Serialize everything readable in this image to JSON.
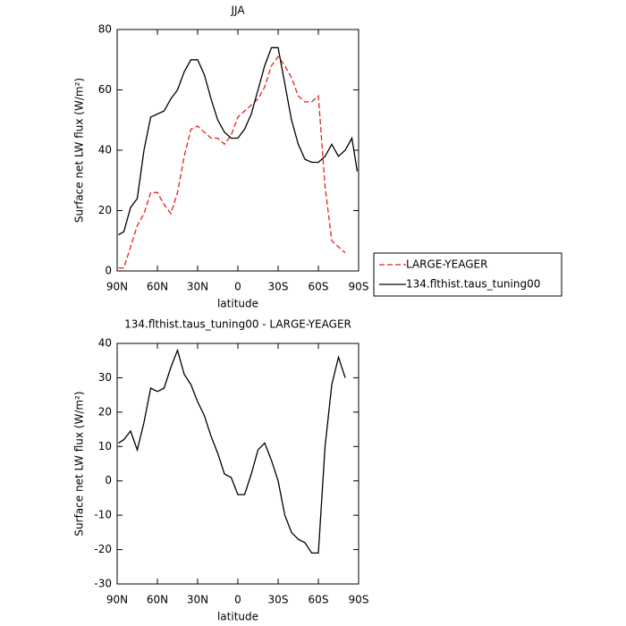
{
  "chart_data": [
    {
      "type": "line",
      "title": "JJA",
      "x_label": "latitude",
      "y_label": "Surface net LW flux (W/m²)",
      "x": [
        89,
        85,
        80,
        75,
        70,
        65,
        60,
        55,
        50,
        45,
        40,
        35,
        30,
        25,
        20,
        15,
        10,
        5,
        0,
        -5,
        -10,
        -15,
        -20,
        -25,
        -30,
        -35,
        -40,
        -45,
        -50,
        -55,
        -60,
        -65,
        -70,
        -75,
        -80,
        -85,
        -89
      ],
      "series": [
        {
          "name": "LARGE-YEAGER",
          "color": "#e8201e",
          "dash": true,
          "values": [
            1,
            1,
            8,
            15,
            19,
            26,
            26,
            22,
            19,
            26,
            38,
            47,
            48,
            46,
            44,
            44,
            42,
            45,
            51,
            53,
            55,
            57,
            61,
            68,
            71,
            68,
            64,
            58,
            56,
            56,
            58,
            28,
            10,
            8,
            6,
            null,
            null
          ]
        },
        {
          "name": "134.flthist.taus_tuning00",
          "color": "#000000",
          "dash": false,
          "values": [
            12,
            13,
            21,
            24,
            40,
            51,
            52,
            53,
            57,
            60,
            66,
            70,
            70,
            65,
            57,
            50,
            46,
            44,
            44,
            47,
            52,
            60,
            68,
            74,
            74,
            62,
            50,
            42,
            37,
            36,
            36,
            38,
            42,
            38,
            40,
            44,
            33
          ]
        }
      ],
      "xlim": [
        90,
        -90
      ],
      "xticks": [
        {
          "value": 90,
          "label": "90N"
        },
        {
          "value": 60,
          "label": "60N"
        },
        {
          "value": 30,
          "label": "30N"
        },
        0,
        {
          "value": -30,
          "label": "30S"
        },
        {
          "value": -60,
          "label": "60S"
        },
        {
          "value": -90,
          "label": "90S"
        }
      ],
      "ylim": [
        0,
        80
      ],
      "yticks": [
        0,
        20,
        40,
        60,
        80
      ],
      "legend": "right"
    },
    {
      "type": "line",
      "title": "134.flthist.taus_tuning00 - LARGE-YEAGER",
      "x_label": "latitude",
      "y_label": "Surface net LW flux (W/m²)",
      "x": [
        89,
        85,
        80,
        75,
        70,
        65,
        60,
        55,
        50,
        45,
        40,
        35,
        30,
        25,
        20,
        15,
        10,
        5,
        0,
        -5,
        -10,
        -15,
        -20,
        -25,
        -30,
        -35,
        -40,
        -45,
        -50,
        -55,
        -60,
        -65,
        -70,
        -75,
        -80,
        -85,
        -89
      ],
      "values": [
        11,
        12,
        14.5,
        9,
        17,
        27,
        26,
        27,
        33,
        38,
        31,
        28,
        23,
        19,
        13,
        8,
        2,
        1,
        -4,
        -4,
        2,
        9,
        11,
        6,
        0,
        -10,
        -15,
        -17,
        -18,
        -21,
        -21,
        10,
        28,
        36,
        30,
        null,
        null
      ],
      "color": "#000000",
      "xlim": [
        90,
        -90
      ],
      "xticks": [
        {
          "value": 90,
          "label": "90N"
        },
        {
          "value": 60,
          "label": "60N"
        },
        {
          "value": 30,
          "label": "30N"
        },
        0,
        {
          "value": -30,
          "label": "30S"
        },
        {
          "value": -60,
          "label": "60S"
        },
        {
          "value": -90,
          "label": "90S"
        }
      ],
      "ylim": [
        -30,
        40
      ],
      "yticks": [
        -30,
        -20,
        -10,
        0,
        10,
        20,
        30,
        40
      ]
    }
  ]
}
